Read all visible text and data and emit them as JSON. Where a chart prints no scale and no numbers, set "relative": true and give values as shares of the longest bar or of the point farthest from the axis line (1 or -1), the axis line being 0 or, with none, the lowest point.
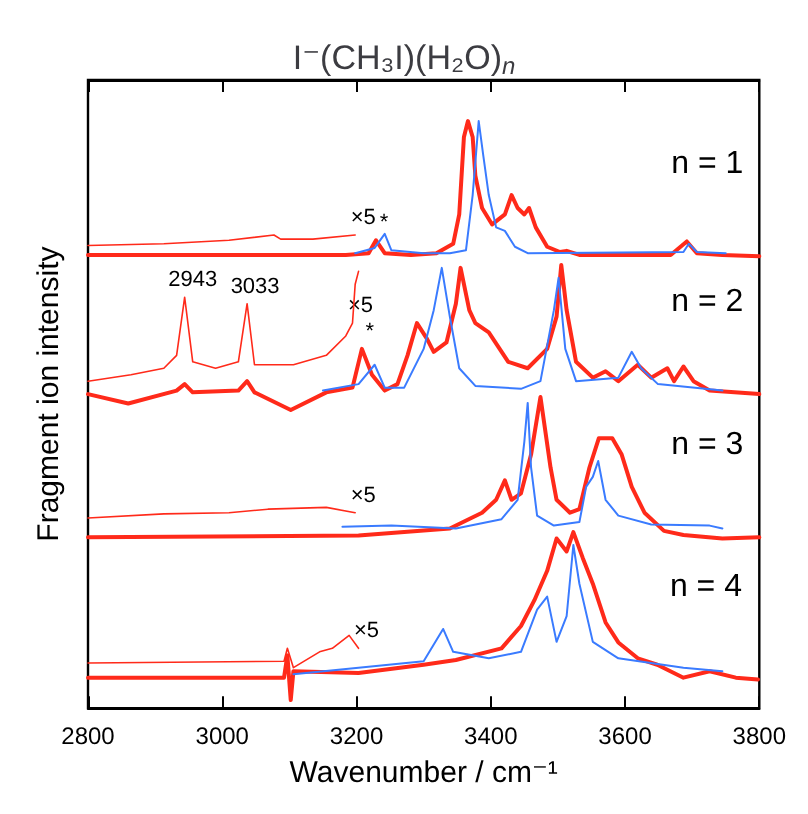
{
  "chart_data": {
    "type": "line",
    "title": "I⁻(CH₃I)(H₂O)$_{n}$",
    "xlabel": "Wavenumber / cm⁻¹",
    "ylabel": "Fragment ion intensity",
    "relative": true,
    "xlim": [
      2800,
      3800
    ],
    "xticks": [
      2800,
      3000,
      3200,
      3400,
      3600,
      3800
    ],
    "grid": false,
    "marker": "none",
    "series": [
      {
        "color": "#ff2a1a",
        "x": [
          2800,
          3184,
          3218,
          3229,
          3242,
          3281,
          3319,
          3344,
          3353,
          3360,
          3366,
          3373,
          3377,
          3387,
          3402,
          3421,
          3431,
          3440,
          3450,
          3457,
          3467,
          3484,
          3503,
          3513,
          3532,
          3668,
          3692,
          3707,
          3745,
          3800
        ],
        "values": [
          0.772,
          0.772,
          0.775,
          0.797,
          0.775,
          0.772,
          0.775,
          0.791,
          0.841,
          0.973,
          1.0,
          0.973,
          0.907,
          0.852,
          0.824,
          0.841,
          0.874,
          0.852,
          0.841,
          0.852,
          0.819,
          0.786,
          0.777,
          0.779,
          0.772,
          0.772,
          0.795,
          0.775,
          0.772,
          0.77
        ]
      },
      {
        "color": "#3a7bff",
        "x": [
          3198,
          3227,
          3242,
          3252,
          3300,
          3339,
          3363,
          3373,
          3382,
          3389,
          3397,
          3408,
          3421,
          3436,
          3455,
          3687,
          3695,
          3707,
          3750
        ],
        "values": [
          0.775,
          0.784,
          0.808,
          0.78,
          0.775,
          0.775,
          0.78,
          0.874,
          1.0,
          0.94,
          0.874,
          0.819,
          0.813,
          0.786,
          0.775,
          0.777,
          0.791,
          0.777,
          0.775
        ]
      },
      {
        "color": "#ff2a1a",
        "x": [
          2800,
          2913,
          3010,
          3077,
          3087,
          3135,
          3198
        ],
        "values": [
          0.788,
          0.791,
          0.797,
          0.806,
          0.799,
          0.799,
          0.806
        ]
      },
      {
        "color": "#ff2a1a",
        "x": [
          2800,
          2860,
          2932,
          2944,
          2956,
          3024,
          3037,
          3048,
          3102,
          3155,
          3194,
          3208,
          3223,
          3242,
          3261,
          3276,
          3290,
          3305,
          3315,
          3334,
          3348,
          3355,
          3368,
          3377,
          3397,
          3426,
          3455,
          3484,
          3498,
          3505,
          3513,
          3527,
          3552,
          3571,
          3590,
          3619,
          3639,
          3663,
          3673,
          3687,
          3702,
          3726,
          3800
        ],
        "values": [
          0.535,
          0.519,
          0.541,
          0.552,
          0.538,
          0.541,
          0.557,
          0.538,
          0.508,
          0.538,
          0.546,
          0.612,
          0.568,
          0.541,
          0.552,
          0.601,
          0.656,
          0.629,
          0.607,
          0.623,
          0.689,
          0.75,
          0.678,
          0.656,
          0.64,
          0.59,
          0.579,
          0.612,
          0.667,
          0.755,
          0.678,
          0.59,
          0.563,
          0.574,
          0.557,
          0.585,
          0.563,
          0.579,
          0.557,
          0.582,
          0.557,
          0.541,
          0.535
        ]
      },
      {
        "color": "#3a7bff",
        "x": [
          3150,
          3203,
          3227,
          3242,
          3271,
          3300,
          3315,
          3327,
          3339,
          3353,
          3377,
          3445,
          3474,
          3494,
          3501,
          3511,
          3527,
          3590,
          3610,
          3624,
          3649,
          3745
        ],
        "values": [
          0.541,
          0.552,
          0.585,
          0.546,
          0.546,
          0.612,
          0.678,
          0.75,
          0.667,
          0.579,
          0.549,
          0.544,
          0.557,
          0.678,
          0.733,
          0.612,
          0.557,
          0.563,
          0.607,
          0.579,
          0.552,
          0.541
        ]
      },
      {
        "color": "#ff2a1a",
        "x": [
          2800,
          2864,
          2913,
          2932,
          2944,
          2956,
          2990,
          3024,
          3037,
          3048,
          3106,
          3155,
          3184,
          3194,
          3198,
          3203
        ],
        "values": [
          0.557,
          0.568,
          0.579,
          0.601,
          0.7,
          0.59,
          0.579,
          0.59,
          0.689,
          0.585,
          0.585,
          0.601,
          0.634,
          0.656,
          0.722,
          0.744
        ]
      },
      {
        "color": "#ff2a1a",
        "x": [
          2800,
          3203,
          3339,
          3387,
          3408,
          3421,
          3431,
          3445,
          3460,
          3474,
          3489,
          3498,
          3518,
          3532,
          3547,
          3561,
          3581,
          3595,
          3610,
          3629,
          3658,
          3687,
          3745,
          3800
        ],
        "values": [
          0.291,
          0.294,
          0.306,
          0.333,
          0.355,
          0.388,
          0.355,
          0.366,
          0.432,
          0.53,
          0.41,
          0.355,
          0.333,
          0.339,
          0.41,
          0.46,
          0.46,
          0.432,
          0.377,
          0.333,
          0.302,
          0.295,
          0.289,
          0.291
        ]
      },
      {
        "color": "#3a7bff",
        "x": [
          3179,
          3252,
          3348,
          3416,
          3440,
          3450,
          3455,
          3460,
          3469,
          3494,
          3532,
          3542,
          3552,
          3560,
          3571,
          3590,
          3639,
          3726,
          3745
        ],
        "values": [
          0.309,
          0.311,
          0.306,
          0.322,
          0.355,
          0.454,
          0.52,
          0.41,
          0.328,
          0.311,
          0.317,
          0.377,
          0.394,
          0.421,
          0.355,
          0.328,
          0.313,
          0.311,
          0.306
        ]
      },
      {
        "color": "#ff2a1a",
        "x": [
          2800,
          2913,
          3010,
          3068,
          3155,
          3198
        ],
        "values": [
          0.324,
          0.331,
          0.333,
          0.339,
          0.342,
          0.333
        ]
      },
      {
        "color": "#ff2a1a",
        "x": [
          2800,
          3092,
          3097,
          3102,
          3106,
          3203,
          3300,
          3348,
          3416,
          3445,
          3465,
          3484,
          3498,
          3513,
          3523,
          3537,
          3552,
          3571,
          3590,
          3619,
          3648,
          3687,
          3726,
          3765,
          3798
        ],
        "values": [
          0.052,
          0.052,
          0.09,
          0.014,
          0.063,
          0.06,
          0.074,
          0.082,
          0.102,
          0.14,
          0.184,
          0.234,
          0.289,
          0.267,
          0.3,
          0.256,
          0.212,
          0.146,
          0.112,
          0.085,
          0.074,
          0.052,
          0.063,
          0.052,
          0.049
        ]
      },
      {
        "color": "#3a7bff",
        "x": [
          3106,
          3203,
          3300,
          3329,
          3344,
          3397,
          3445,
          3469,
          3484,
          3498,
          3513,
          3523,
          3532,
          3552,
          3590,
          3687,
          3745
        ],
        "values": [
          0.058,
          0.069,
          0.08,
          0.135,
          0.096,
          0.085,
          0.096,
          0.168,
          0.19,
          0.113,
          0.157,
          0.278,
          0.212,
          0.113,
          0.085,
          0.069,
          0.063
        ]
      },
      {
        "color": "#ff2a1a",
        "x": [
          2800,
          3092,
          3097,
          3106,
          3145,
          3164,
          3189,
          3203
        ],
        "values": [
          0.077,
          0.08,
          0.102,
          0.069,
          0.096,
          0.102,
          0.124,
          0.102
        ]
      }
    ],
    "annotations": [
      {
        "text": "n = 1",
        "x": 3800,
        "y": 0.77
      },
      {
        "text": "×5",
        "x": 3198,
        "y": 0.806
      },
      {
        "text": "*",
        "x": 3229,
        "y": 0.797
      },
      {
        "text": "n = 2",
        "x": 3800,
        "y": 0.535
      },
      {
        "text": "2943",
        "x": 2944,
        "y": 0.7
      },
      {
        "text": "3033",
        "x": 3037,
        "y": 0.689
      },
      {
        "text": "×5",
        "x": 3194,
        "y": 0.656
      },
      {
        "text": "*",
        "x": 3208,
        "y": 0.612
      },
      {
        "text": "n = 3",
        "x": 3800,
        "y": 0.291
      },
      {
        "text": "×5",
        "x": 3198,
        "y": 0.333
      },
      {
        "text": "n = 4",
        "x": 3798,
        "y": 0.049
      },
      {
        "text": "×5",
        "x": 3203,
        "y": 0.102
      }
    ]
  }
}
